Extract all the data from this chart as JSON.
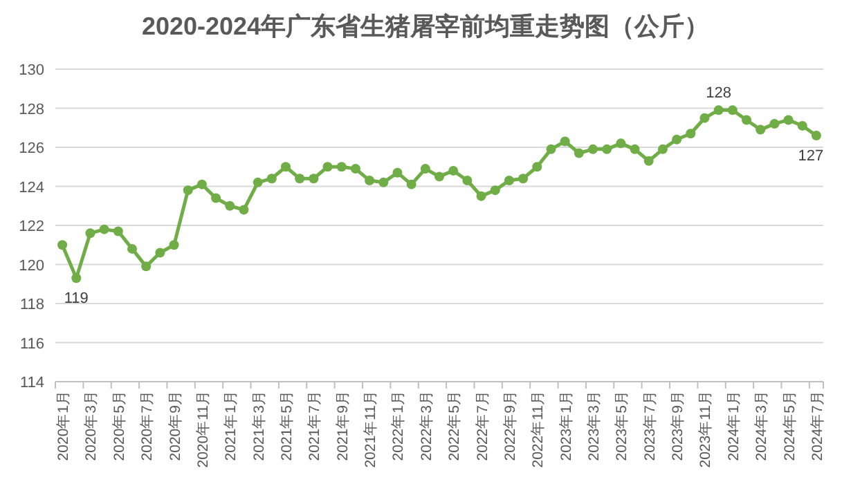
{
  "chart_data": {
    "type": "line",
    "title": "2020-2024年广东省生猪屠宰前均重走势图（公斤）",
    "categories": [
      "2020年1月",
      null,
      "2020年3月",
      null,
      "2020年5月",
      null,
      "2020年7月",
      null,
      "2020年9月",
      null,
      "2020年11月",
      null,
      "2021年1月",
      null,
      "2021年3月",
      null,
      "2021年5月",
      null,
      "2021年7月",
      null,
      "2021年9月",
      null,
      "2021年11月",
      null,
      "2022年1月",
      null,
      "2022年3月",
      null,
      "2022年5月",
      null,
      "2022年7月",
      null,
      "2022年9月",
      null,
      "2022年11月",
      null,
      "2023年1月",
      null,
      "2023年3月",
      null,
      "2023年5月",
      null,
      "2023年7月",
      null,
      "2023年9月",
      null,
      "2023年11月",
      null,
      "2024年1月",
      null,
      "2024年3月",
      null,
      "2024年5月",
      null,
      "2024年7月"
    ],
    "series": [
      {
        "color": "#70ad47",
        "values": [
          121.0,
          119.3,
          121.6,
          121.8,
          121.7,
          120.8,
          119.9,
          120.6,
          121.0,
          123.8,
          124.1,
          123.4,
          123.0,
          122.8,
          124.2,
          124.4,
          125.0,
          124.4,
          124.4,
          125.0,
          125.0,
          124.9,
          124.3,
          124.2,
          124.7,
          124.1,
          124.9,
          124.5,
          124.8,
          124.3,
          123.5,
          123.8,
          124.3,
          124.4,
          125.0,
          125.9,
          126.3,
          125.7,
          125.9,
          125.9,
          126.2,
          125.9,
          125.3,
          125.9,
          126.4,
          126.7,
          127.5,
          127.9,
          127.9,
          127.4,
          126.9,
          127.2,
          127.4,
          127.1,
          126.6
        ],
        "value_labels": [
          null,
          "119",
          null,
          null,
          null,
          null,
          null,
          null,
          null,
          null,
          null,
          null,
          null,
          null,
          null,
          null,
          null,
          null,
          null,
          null,
          null,
          null,
          null,
          null,
          null,
          null,
          null,
          null,
          null,
          null,
          null,
          null,
          null,
          null,
          null,
          null,
          null,
          null,
          null,
          null,
          null,
          null,
          null,
          null,
          null,
          null,
          null,
          "128",
          null,
          null,
          null,
          null,
          null,
          null,
          "127"
        ]
      }
    ],
    "ylim": [
      114,
      130
    ],
    "yticks": [
      114,
      116,
      118,
      120,
      122,
      124,
      126,
      128,
      130
    ],
    "grid": "y",
    "marker": "circle",
    "line_style": "solid"
  }
}
